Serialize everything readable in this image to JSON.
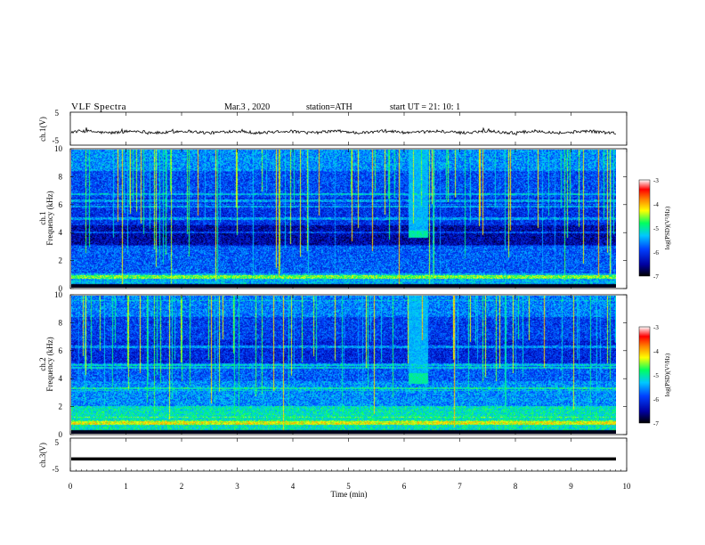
{
  "header": {
    "title": "VLF Spectra",
    "date": "Mar.3 , 2020",
    "station": "station=ATH",
    "start": "start UT = 21: 10: 1"
  },
  "chart_data": [
    {
      "type": "line",
      "ylabel": "ch.1(V)",
      "ylim": [
        -5,
        5
      ],
      "yticks": [
        "5",
        "-5"
      ],
      "description_series": "waveform fluctuating near -1 V"
    },
    {
      "type": "heatmap",
      "ylabel": "Frequency (kHz)",
      "channel_label": "ch.1",
      "ylim": [
        0,
        10
      ],
      "yticks": [
        "10",
        "8",
        "6",
        "4",
        "2",
        "0"
      ],
      "xlim": [
        0,
        10
      ],
      "colorbar": {
        "label": "log(PSD)(V²/Hz)",
        "range": [
          -7,
          -3
        ],
        "ticks": [
          "-3",
          "-4",
          "-5",
          "-6",
          "-7"
        ]
      },
      "features": {
        "burst_time_min": [
          6.05,
          6.4
        ],
        "burst_band_khz": [
          3.6,
          4.1
        ],
        "horizontal_lines_khz": [
          6.8,
          6.3,
          5.9,
          5.0,
          4.0
        ]
      }
    },
    {
      "type": "heatmap",
      "ylabel": "Frequency (kHz)",
      "channel_label": "ch.2",
      "ylim": [
        0,
        10
      ],
      "yticks": [
        "10",
        "8",
        "6",
        "4",
        "2",
        "0"
      ],
      "xlim": [
        0,
        10
      ],
      "colorbar": {
        "label": "log(PSD)(V²/Hz)",
        "range": [
          -7,
          -3
        ],
        "ticks": [
          "-3",
          "-4",
          "-5",
          "-6",
          "-7"
        ]
      },
      "features": {
        "burst_time_min": [
          6.05,
          6.4
        ],
        "burst_band_khz": [
          3.6,
          4.4
        ],
        "horizontal_lines_khz": [
          6.3,
          5.0,
          4.8,
          3.3
        ]
      }
    },
    {
      "type": "line",
      "ylabel": "ch.3(V)",
      "ylim": [
        -5,
        5
      ],
      "yticks": [
        "5",
        "-5"
      ],
      "xlabel": "Time (min)",
      "xlim": [
        0,
        10
      ],
      "xticks": [
        "0",
        "1",
        "2",
        "3",
        "4",
        "5",
        "6",
        "7",
        "8",
        "9",
        "10"
      ],
      "constant_value_v": -1.3
    }
  ],
  "colors": {
    "background_spectrogram": "#000018",
    "colormap": [
      "#000000",
      "#0000a0",
      "#0040ff",
      "#00c8ff",
      "#00ff60",
      "#ffff00",
      "#ff8000",
      "#ff0000",
      "#ffffff"
    ]
  }
}
